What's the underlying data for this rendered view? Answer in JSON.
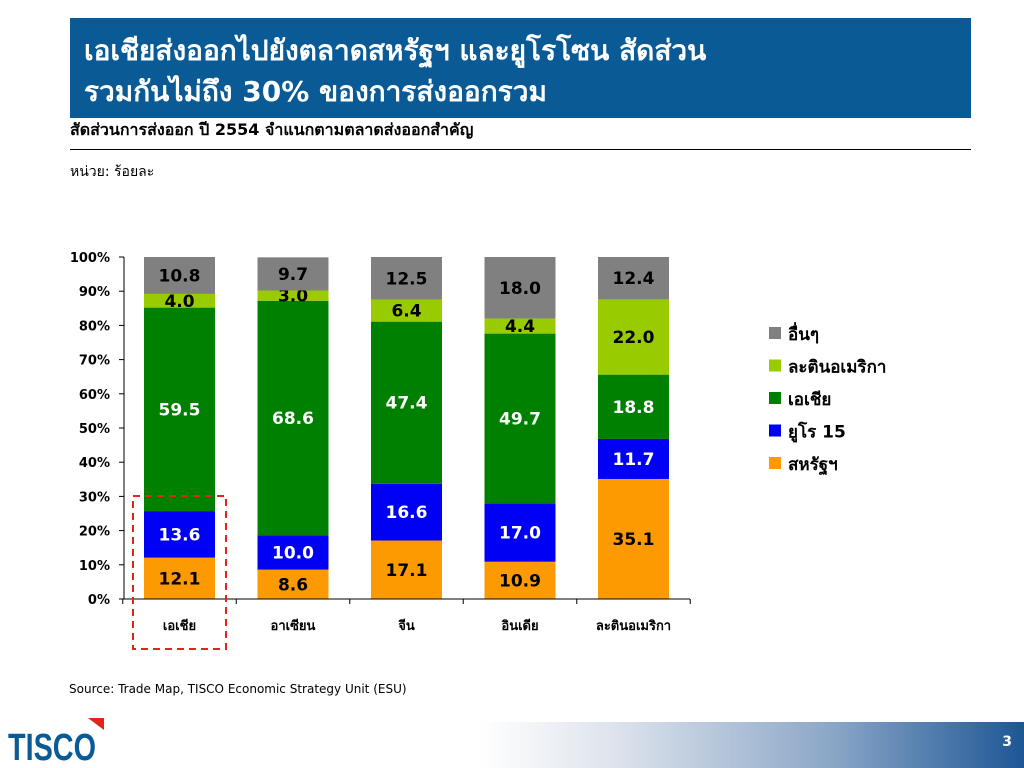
{
  "slide": {
    "title_line1": "เอเชียส่งออกไปยังตลาดสหรัฐฯ และยูโรโซน สัดส่วน",
    "title_line2": "รวมกันไม่ถึง 30% ของการส่งออกรวม",
    "subtitle": "สัดส่วนการส่งออก ปี 2554 จำแนกตามตลาดส่งออกสำคัญ",
    "unit": "หน่วย: ร้อยละ",
    "source": "Source: Trade Map, TISCO Economic Strategy Unit (ESU)",
    "page_number": "3",
    "logo_text": "TISCO"
  },
  "colors": {
    "title_bg": "#0a5b95",
    "logo_blue": "#0a5b95",
    "logo_red": "#e3241b",
    "highlight_dash": "#e3241b"
  },
  "chart_data": {
    "type": "bar",
    "stacked": true,
    "categories": [
      "เอเชีย",
      "อาเซียน",
      "จีน",
      "อินเดีย",
      "ละตินอเมริกา"
    ],
    "ylim": [
      0,
      100
    ],
    "yticks": [
      "0%",
      "10%",
      "20%",
      "30%",
      "40%",
      "50%",
      "60%",
      "70%",
      "80%",
      "90%",
      "100%"
    ],
    "series": [
      {
        "name": "สหรัฐฯ",
        "color": "#fd9a01",
        "values": [
          12.1,
          8.6,
          17.1,
          10.9,
          35.1
        ],
        "labels": [
          "12.1",
          "8.6",
          "17.1",
          "10.9",
          "35.1"
        ],
        "label_color": "#000000"
      },
      {
        "name": "ยูโร 15",
        "color": "#0000f5",
        "values": [
          13.6,
          10.0,
          16.6,
          17.0,
          11.7
        ],
        "labels": [
          "13.6",
          "10.0",
          "16.6",
          "17.0",
          "11.7"
        ],
        "label_color": "#ffffff"
      },
      {
        "name": "เอเชีย",
        "color": "#008000",
        "values": [
          59.5,
          68.6,
          47.4,
          49.7,
          18.8
        ],
        "labels": [
          "59.5",
          "68.6",
          "47.4",
          "49.7",
          "18.8"
        ],
        "label_color": "#ffffff"
      },
      {
        "name": "ละตินอเมริกา",
        "color": "#99cc00",
        "values": [
          4.0,
          3.0,
          6.4,
          4.4,
          22.0
        ],
        "labels": [
          "4.0",
          "3.0",
          "6.4",
          "4.4",
          "22.0"
        ],
        "label_color": "#000000"
      },
      {
        "name": "อื่นๆ",
        "color": "#808080",
        "values": [
          10.8,
          9.7,
          12.5,
          18.0,
          12.4
        ],
        "labels": [
          "10.8",
          "9.7",
          "12.5",
          "18.0",
          "12.4"
        ],
        "label_color": "#000000"
      }
    ],
    "legend_order": [
      "อื่นๆ",
      "ละตินอเมริกา",
      "เอเชีย",
      "ยูโร 15",
      "สหรัฐฯ"
    ],
    "legend_position": "right",
    "grid": false,
    "highlighted_category": "เอเชีย"
  }
}
